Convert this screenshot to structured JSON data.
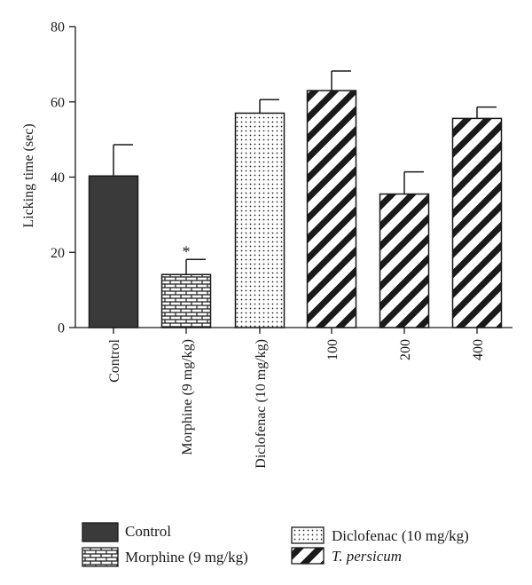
{
  "chart_data": {
    "type": "bar",
    "ylabel": "Licking time (sec)",
    "xlabel": "",
    "ylim": [
      0,
      80
    ],
    "yticks": [
      0,
      20,
      40,
      60,
      80
    ],
    "grid": false,
    "legend_position": "bottom",
    "categories": [
      "Control",
      "Morphine (9 mg/kg)",
      "Diclofenac (10 mg/kg)",
      "100",
      "200",
      "400"
    ],
    "values": [
      40.3,
      14.1,
      57.0,
      63.0,
      35.5,
      55.6
    ],
    "errors": [
      8.3,
      4.0,
      3.6,
      5.2,
      5.9,
      3.0
    ],
    "patterns": [
      "solid",
      "brick",
      "dots",
      "diagonal",
      "diagonal",
      "diagonal"
    ],
    "annotations": [
      {
        "category": "Morphine (9 mg/kg)",
        "text": "*"
      }
    ],
    "legend": [
      {
        "label": "Control",
        "pattern": "solid"
      },
      {
        "label": "Morphine (9 mg/kg)",
        "pattern": "brick"
      },
      {
        "label": "Diclofenac (10 mg/kg)",
        "pattern": "dots"
      },
      {
        "label": "T. persicum",
        "pattern": "diagonal",
        "italic": true
      }
    ],
    "colors": {
      "solid": "#3a3a3a",
      "ink": "#1a1a1a"
    }
  }
}
